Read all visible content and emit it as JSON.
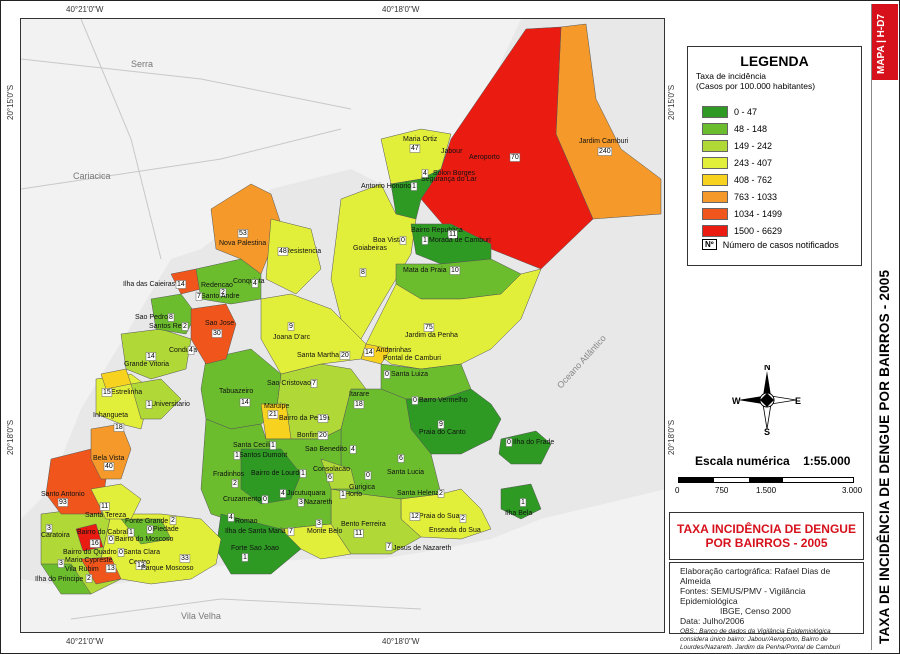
{
  "side": {
    "tag": "MAPA | H-D7",
    "title": "TAXA DE INCIDÊNCIA DE DENGUE POR BAIRROS - 2005"
  },
  "coords": {
    "top_left": "40°21'0\"W",
    "top_right": "40°18'0\"W",
    "bottom_left": "40°21'0\"W",
    "bottom_right": "40°18'0\"W",
    "left_top": "20°15'0\"S",
    "left_bottom": "20°18'0\"S",
    "right_top": "20°15'0\"S",
    "right_bottom": "20°18'0\"S"
  },
  "map_labels": {
    "serra": "Serra",
    "cariacica": "Cariacica",
    "vila_velha": "Vila Velha",
    "ocean": "Oceano Atlântico"
  },
  "legend": {
    "title": "LEGENDA",
    "subtitle1": "Taxa de incidência",
    "subtitle2": "(Casos por 100.000 habitantes)",
    "classes": [
      {
        "label": "0 - 47",
        "color": "#2e9a24"
      },
      {
        "label": "48 - 148",
        "color": "#6cbd2e"
      },
      {
        "label": "149 - 242",
        "color": "#b0d836"
      },
      {
        "label": "243 - 407",
        "color": "#e2ef3a"
      },
      {
        "label": "408 - 762",
        "color": "#f7d21e"
      },
      {
        "label": "763 - 1033",
        "color": "#f59a2a"
      },
      {
        "label": "1034 - 1499",
        "color": "#f0561c"
      },
      {
        "label": "1500 - 6629",
        "color": "#ea1c12"
      }
    ],
    "note_box": "Nº",
    "note_text": "Número de casos notificados"
  },
  "compass": {
    "n": "N",
    "s": "S",
    "e": "E",
    "w": "W"
  },
  "scale": {
    "label": "Escala numérica",
    "value": "1:55.000",
    "ticks": [
      "0",
      "750",
      "1.500",
      "3.000"
    ]
  },
  "title_box": {
    "line1": "TAXA INCIDÊNCIA DE DENGUE",
    "line2": "POR BAIRROS - 2005"
  },
  "credits": {
    "line1": "Elaboração cartográfica: Rafael Dias de Almeida",
    "line2": "Fontes: SEMUS/PMV - Vigilância Epidemiológica",
    "line3": "IBGE, Censo 2000",
    "line4": "Data: Julho/2006",
    "obs": "OBS.: Banco de dados da Vigilância Epidemiológica considera único bairro: Jabour/Aeroporto, Bairro de Lourdes/Nazareth. Jardim da Penha/Pontal de Camburi"
  },
  "neighborhoods": [
    {
      "name": "Jardim Camburi",
      "count": "240"
    },
    {
      "name": "Aeroporto",
      "count": "70"
    },
    {
      "name": "Maria Ortiz",
      "count": "47"
    },
    {
      "name": "Jabour",
      "count": ""
    },
    {
      "name": "Segurança do Lar",
      "count": "4"
    },
    {
      "name": "Solon Borges",
      "count": ""
    },
    {
      "name": "Antonio Honorio",
      "count": "1"
    },
    {
      "name": "Goiabeiras",
      "count": "8"
    },
    {
      "name": "Boa Vista",
      "count": "0"
    },
    {
      "name": "Bairro Republica",
      "count": "11"
    },
    {
      "name": "Morada de Camburi",
      "count": "1"
    },
    {
      "name": "Mata da Praia",
      "count": "10"
    },
    {
      "name": "Jardim da Penha",
      "count": "75"
    },
    {
      "name": "Pontal de Camburi",
      "count": ""
    },
    {
      "name": "Andorinhas",
      "count": "14"
    },
    {
      "name": "Santa Luiza",
      "count": "0"
    },
    {
      "name": "Barro Vermelho",
      "count": "0"
    },
    {
      "name": "Praia do Canto",
      "count": "9"
    },
    {
      "name": "Ilha do Frade",
      "count": "0"
    },
    {
      "name": "Nova Palestina",
      "count": "53"
    },
    {
      "name": "Resistencia",
      "count": "48"
    },
    {
      "name": "Conquista",
      "count": "4"
    },
    {
      "name": "Redencao",
      "count": "2"
    },
    {
      "name": "Santo Andre",
      "count": "7"
    },
    {
      "name": "Ilha das Caieiras",
      "count": "14"
    },
    {
      "name": "Sao Pedro",
      "count": "8"
    },
    {
      "name": "Santos Reis",
      "count": "2"
    },
    {
      "name": "Sao Jose",
      "count": "30"
    },
    {
      "name": "Condusa",
      "count": "4"
    },
    {
      "name": "Grande Vitoria",
      "count": "14"
    },
    {
      "name": "Joana D'arc",
      "count": "9"
    },
    {
      "name": "Santa Martha",
      "count": "20"
    },
    {
      "name": "Sao Cristovao",
      "count": "7"
    },
    {
      "name": "Tabuazeiro",
      "count": "14"
    },
    {
      "name": "Maruipe",
      "count": "21"
    },
    {
      "name": "Itarare",
      "count": "18"
    },
    {
      "name": "Bairro da Penha",
      "count": "19"
    },
    {
      "name": "Bonfim",
      "count": "20"
    },
    {
      "name": "Estrelinha",
      "count": "15"
    },
    {
      "name": "Universitario",
      "count": "1"
    },
    {
      "name": "Inhangueta",
      "count": "18"
    },
    {
      "name": "Bela Vista",
      "count": "40"
    },
    {
      "name": "Santo Antonio",
      "count": "93"
    },
    {
      "name": "Santa Tereza",
      "count": "11"
    },
    {
      "name": "Santa Cecilia",
      "count": "1"
    },
    {
      "name": "Santos Dumont",
      "count": "1"
    },
    {
      "name": "Sao Benedito",
      "count": "4"
    },
    {
      "name": "Consolacao",
      "count": "6"
    },
    {
      "name": "Bairro de Lourdes",
      "count": "1"
    },
    {
      "name": "Fradinhos",
      "count": "2"
    },
    {
      "name": "Cruzamento",
      "count": "0"
    },
    {
      "name": "Jucutuquara",
      "count": "4"
    },
    {
      "name": "Nazareth",
      "count": "3"
    },
    {
      "name": "Horto",
      "count": "1"
    },
    {
      "name": "Gurigica",
      "count": "0"
    },
    {
      "name": "Santa Lucia",
      "count": "6"
    },
    {
      "name": "Santa Helena",
      "count": "2"
    },
    {
      "name": "Ilha Bela",
      "count": "1"
    },
    {
      "name": "Romao",
      "count": "4"
    },
    {
      "name": "Ilha de Santa Maria",
      "count": "7"
    },
    {
      "name": "Monte Belo",
      "count": "3"
    },
    {
      "name": "Bento Ferreira",
      "count": "11"
    },
    {
      "name": "Praia do Sua",
      "count": "12"
    },
    {
      "name": "Enseada do Sua",
      "count": "2"
    },
    {
      "name": "Jesus de Nazareth",
      "count": "7"
    },
    {
      "name": "Forte Sao Joao",
      "count": "1"
    },
    {
      "name": "Caratoira",
      "count": "3"
    },
    {
      "name": "Bairro do Cabral",
      "count": "1"
    },
    {
      "name": "Fonte Grande",
      "count": "2"
    },
    {
      "name": "Piedade",
      "count": "0"
    },
    {
      "name": "Bairro do Quadro",
      "count": "16"
    },
    {
      "name": "Bairro do Moscoso",
      "count": "0"
    },
    {
      "name": "Mario Cypreste",
      "count": "3"
    },
    {
      "name": "Vila Rubim",
      "count": "13"
    },
    {
      "name": "Santa Clara",
      "count": "0"
    },
    {
      "name": "Centro",
      "count": "13"
    },
    {
      "name": "Parque Moscoso",
      "count": "33"
    },
    {
      "name": "Ilha do Principe",
      "count": "2"
    }
  ]
}
